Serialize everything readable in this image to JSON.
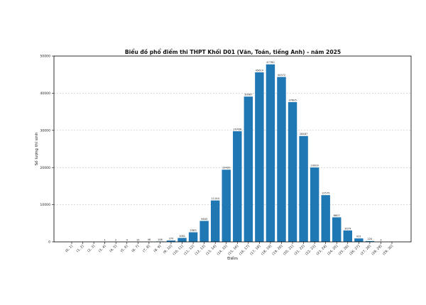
{
  "chart_data": {
    "type": "bar",
    "title": "Biểu đồ phổ điểm thi THPT Khối D01 (Văn, Toán, tiếng Anh) - năm 2025",
    "xlabel": "Điểm",
    "ylabel": "Số lượng thí sinh",
    "ylim": [
      0,
      50000
    ],
    "yticks": [
      0,
      10000,
      20000,
      30000,
      40000,
      50000
    ],
    "grid": "y",
    "bar_color": "#1f77b4",
    "categories": [
      "(0, 1]",
      "(1, 2]",
      "(2, 3]",
      "(3, 4]",
      "(4, 5]",
      "(5, 6]",
      "(6, 7]",
      "(7, 8]",
      "(8, 9]",
      "(9, 10]",
      "(10, 11]",
      "(11, 12]",
      "(12, 13]",
      "(13, 14]",
      "(14, 15]",
      "(15, 16]",
      "(16, 17]",
      "(17, 18]",
      "(18, 19]",
      "(19, 20]",
      "(20, 21]",
      "(21, 22]",
      "(22, 23]",
      "(23, 24]",
      "(24, 25]",
      "(25, 26]",
      "(26, 27]",
      "(27, 28]",
      "(28, 29]",
      "(29, 30]"
    ],
    "values": [
      0,
      0,
      0,
      1,
      2,
      4,
      15,
      46,
      106,
      370,
      1061,
      2583,
      5643,
      11144,
      19420,
      29766,
      39087,
      45610,
      47760,
      44372,
      37605,
      28487,
      20009,
      12575,
      6607,
      3079,
      931,
      220,
      3,
      0
    ],
    "data_labels": [
      "",
      "",
      "",
      "1",
      "2",
      "4",
      "15",
      "46",
      "106",
      "370",
      "1061",
      "2583",
      "5643",
      "11144",
      "19420",
      "29766",
      "39087",
      "45610",
      "47760",
      "44372",
      "37605",
      "28487",
      "20009",
      "12575",
      "6607",
      "3079",
      "931",
      "220",
      "3",
      ""
    ]
  }
}
